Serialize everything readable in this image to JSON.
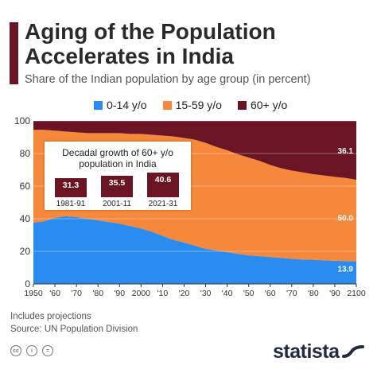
{
  "header": {
    "title_line1": "Aging of the Population",
    "title_line2": "Accelerates in India",
    "subtitle": "Share of the Indian population by age group (in percent)",
    "accent_color": "#6b1424"
  },
  "chart_data": {
    "type": "area",
    "stacked": true,
    "x": [
      1950,
      1955,
      1960,
      1965,
      1970,
      1975,
      1980,
      1985,
      1990,
      1995,
      2000,
      2005,
      2010,
      2015,
      2020,
      2025,
      2030,
      2035,
      2040,
      2045,
      2050,
      2055,
      2060,
      2065,
      2070,
      2075,
      2080,
      2085,
      2090,
      2095,
      2100
    ],
    "xtick_labels": [
      "1950",
      "'60",
      "'70",
      "'80",
      "'90",
      "2000",
      "'10",
      "'20",
      "'30",
      "'40",
      "'50",
      "'60",
      "'70",
      "'80",
      "'90",
      "2100"
    ],
    "xtick_values": [
      1950,
      1960,
      1970,
      1980,
      1990,
      2000,
      2010,
      2020,
      2030,
      2040,
      2050,
      2060,
      2070,
      2080,
      2090,
      2100
    ],
    "yticks": [
      0,
      20,
      40,
      60,
      80,
      100
    ],
    "ylim": [
      0,
      100
    ],
    "series": [
      {
        "name": "0-14 y/o",
        "color": "#2b8cf0",
        "values": [
          37.5,
          38.5,
          40.5,
          41.5,
          41.0,
          40.0,
          39.0,
          38.0,
          37.0,
          35.5,
          34.0,
          32.0,
          29.5,
          27.0,
          25.5,
          23.5,
          21.5,
          20.5,
          19.5,
          18.5,
          17.5,
          17.0,
          16.5,
          16.0,
          15.5,
          15.0,
          14.8,
          14.5,
          14.2,
          14.0,
          13.9
        ]
      },
      {
        "name": "15-59 y/o",
        "color": "#f5883a",
        "values": [
          57.0,
          56.0,
          53.5,
          52.0,
          52.0,
          52.5,
          53.5,
          54.5,
          55.5,
          56.5,
          58.0,
          59.5,
          61.5,
          63.5,
          64.0,
          65.0,
          65.0,
          63.5,
          62.5,
          61.0,
          60.0,
          58.5,
          56.5,
          55.0,
          54.0,
          53.5,
          52.5,
          52.0,
          51.5,
          51.0,
          50.0
        ]
      },
      {
        "name": "60+ y/o",
        "color": "#6b1424",
        "values": [
          5.5,
          5.5,
          6.0,
          6.5,
          7.0,
          7.5,
          7.5,
          7.5,
          7.5,
          8.0,
          8.0,
          8.5,
          9.0,
          9.5,
          10.5,
          11.5,
          13.5,
          16.0,
          18.0,
          20.5,
          22.5,
          24.5,
          27.0,
          29.0,
          30.5,
          31.5,
          32.7,
          33.5,
          34.3,
          35.0,
          36.1
        ]
      }
    ],
    "end_labels": [
      "13.9",
      "50.0",
      "36.1"
    ]
  },
  "inset": {
    "title_line1": "Decadal growth of 60+ y/o",
    "title_line2": "population in India",
    "color": "#6b1424",
    "bars": [
      {
        "label": "1981-91",
        "value": 31.3,
        "value_text": "31.3"
      },
      {
        "label": "2001-11",
        "value": 35.5,
        "value_text": "35.5"
      },
      {
        "label": "2021-31",
        "value": 40.6,
        "value_text": "40.6"
      }
    ]
  },
  "footer": {
    "note": "Includes projections",
    "source": "Source: UN Population Division",
    "cc_icons": [
      "cc-icon",
      "by-icon",
      "nd-icon"
    ],
    "cc_glyphs": [
      "cc",
      "i",
      "="
    ],
    "logo": "statista"
  }
}
